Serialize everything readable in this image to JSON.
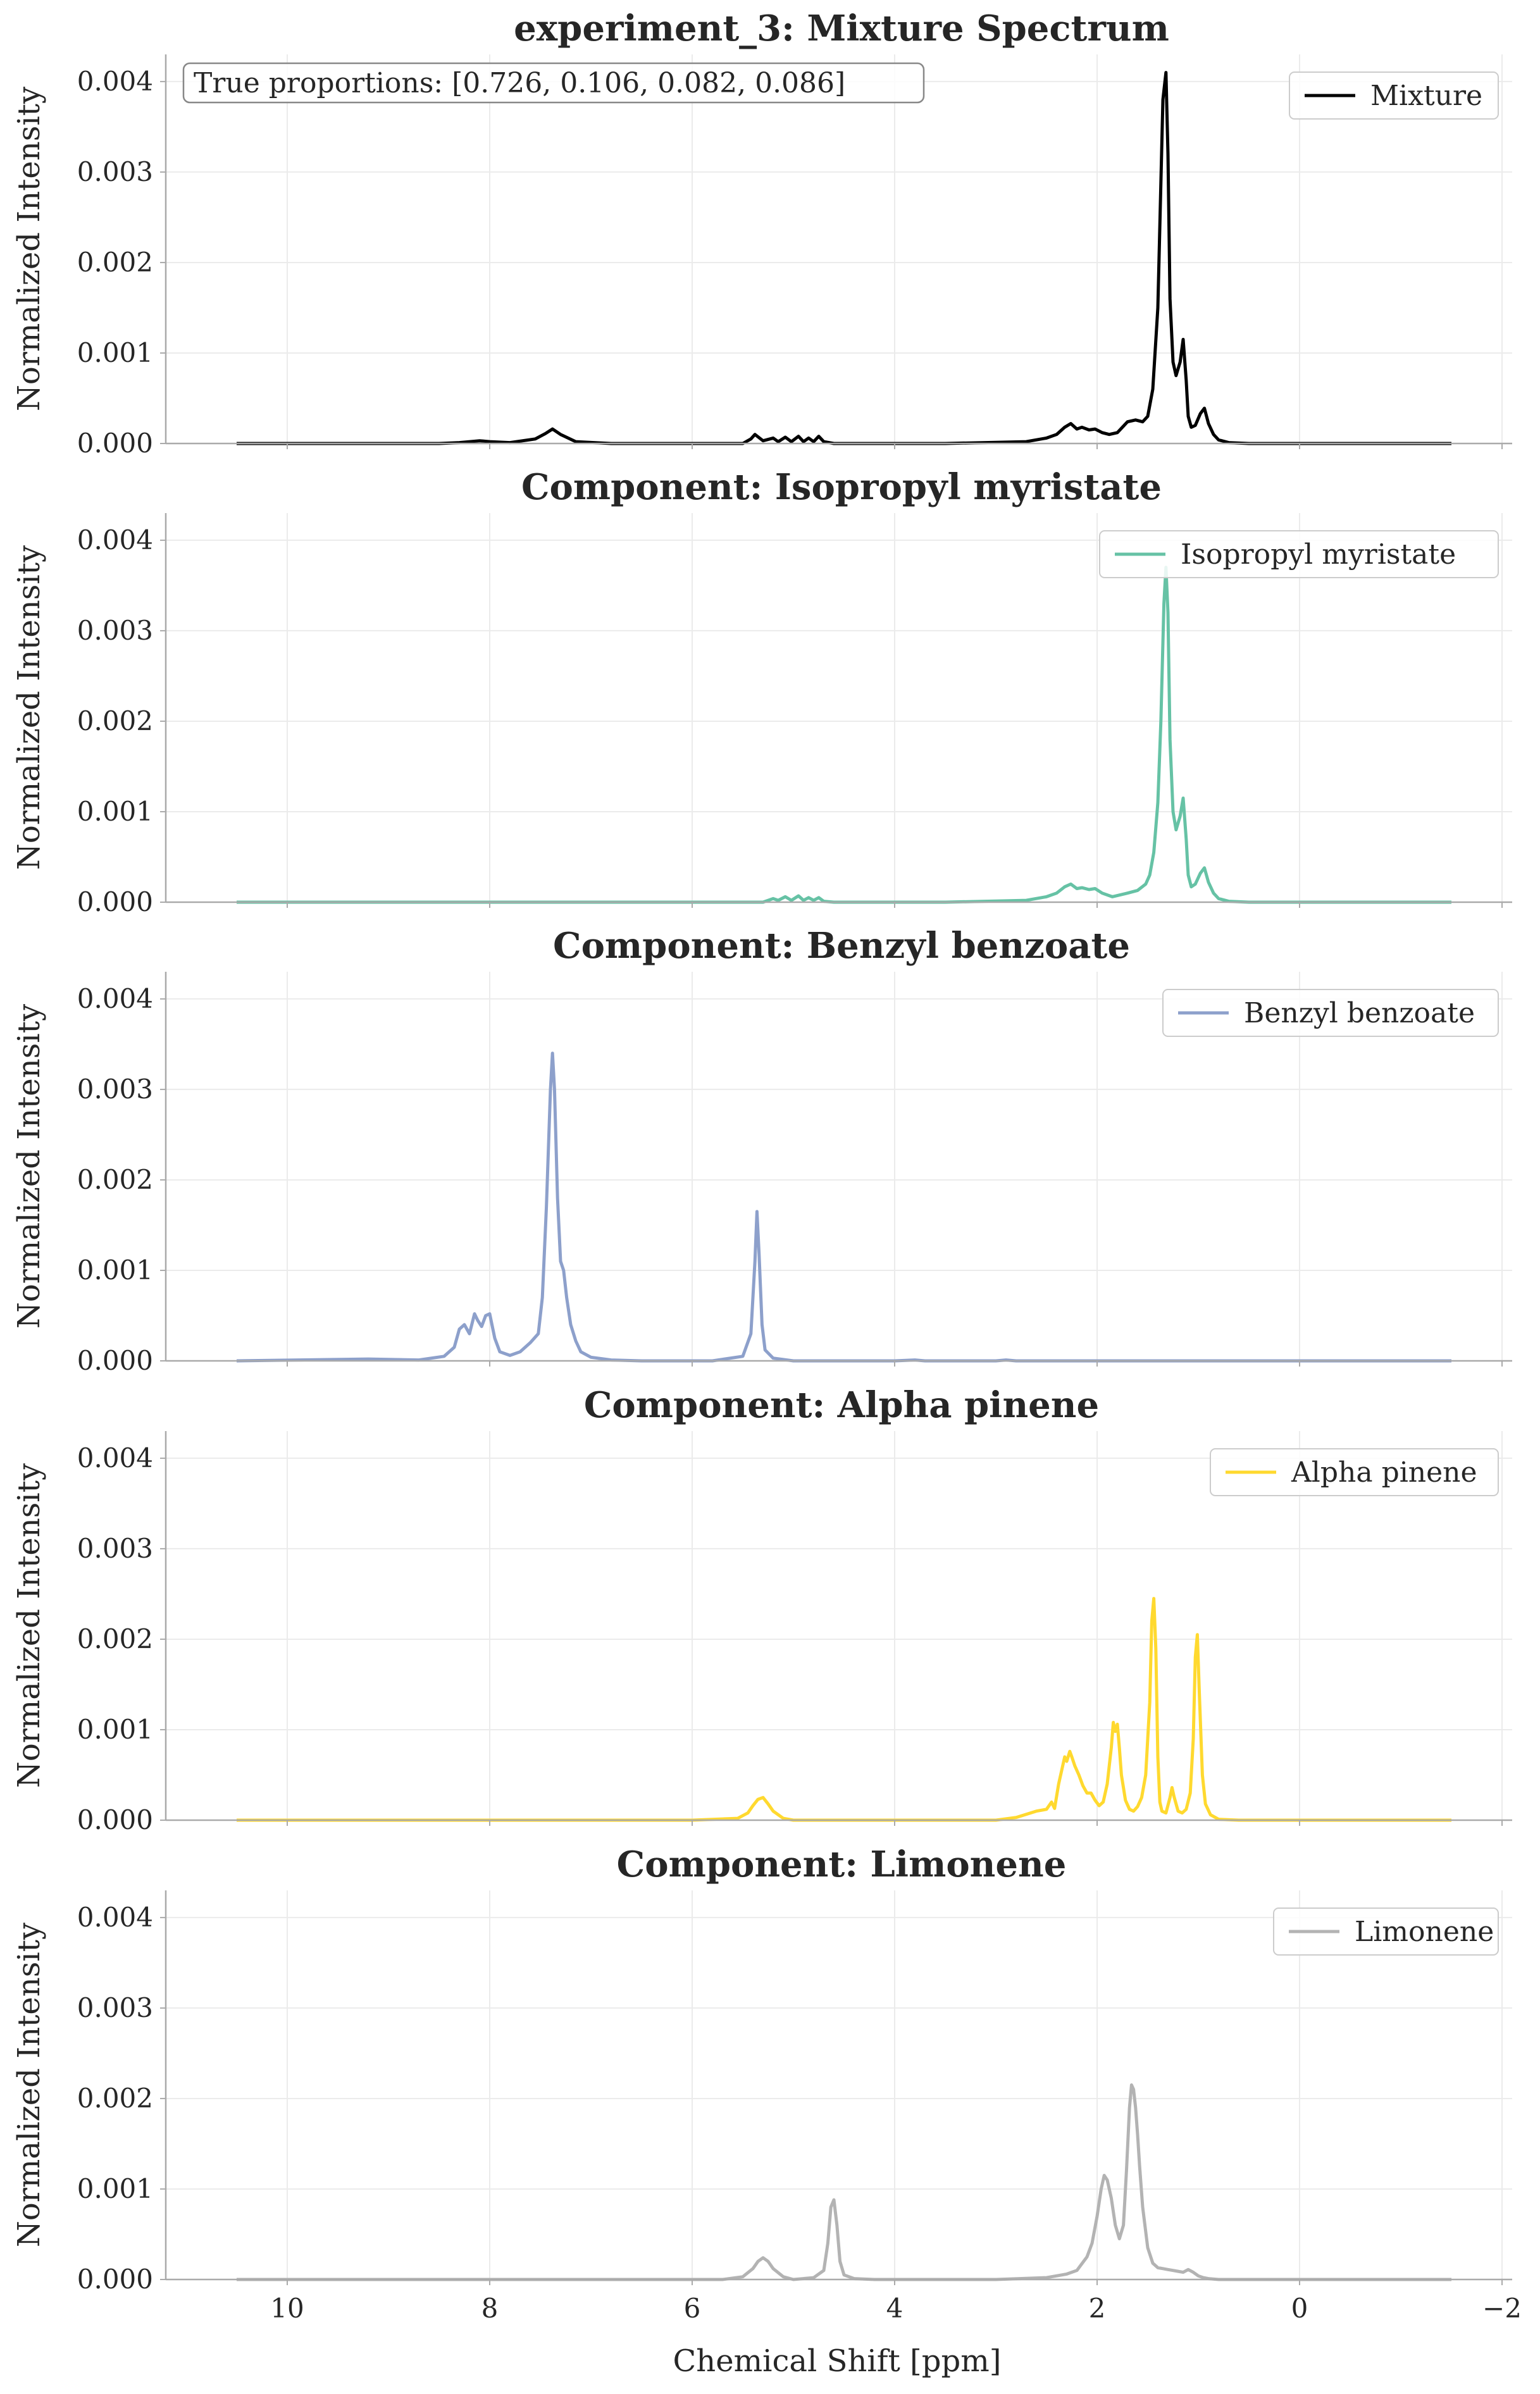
{
  "chart_data": {
    "type": "line",
    "xlabel": "Chemical Shift [ppm]",
    "xlim": [
      11.2,
      -2.1
    ],
    "ylim": [
      0,
      0.0043
    ],
    "x_ticks": [
      10,
      8,
      6,
      4,
      2,
      0,
      -2
    ],
    "x_tick_labels": [
      "10",
      "8",
      "6",
      "4",
      "2",
      "0",
      "−2"
    ],
    "y_ticks": [
      0,
      0.001,
      0.002,
      0.003,
      0.004
    ],
    "y_tick_labels": [
      "0.000",
      "0.001",
      "0.002",
      "0.003",
      "0.004"
    ],
    "grid": true,
    "legend_position": "top-right",
    "annotation": "True proportions: [0.726, 0.106, 0.082, 0.086]",
    "panels": [
      {
        "title": "experiment_3: Mixture Spectrum",
        "ylabel": "Normalized Intensity",
        "series": [
          {
            "name": "Mixture",
            "color": "#000000",
            "x": [
              10.5,
              8.5,
              8.3,
              8.1,
              8.0,
              7.8,
              7.55,
              7.45,
              7.38,
              7.3,
              7.15,
              6.8,
              5.5,
              5.42,
              5.38,
              5.3,
              5.2,
              5.15,
              5.08,
              5.02,
              4.95,
              4.9,
              4.85,
              4.8,
              4.75,
              4.7,
              4.6,
              3.5,
              2.7,
              2.5,
              2.4,
              2.32,
              2.26,
              2.2,
              2.15,
              2.08,
              2.02,
              1.95,
              1.88,
              1.8,
              1.7,
              1.62,
              1.55,
              1.5,
              1.45,
              1.4,
              1.35,
              1.32,
              1.3,
              1.28,
              1.25,
              1.22,
              1.18,
              1.15,
              1.12,
              1.1,
              1.07,
              1.03,
              0.98,
              0.94,
              0.9,
              0.85,
              0.8,
              0.7,
              0.5,
              -1.5
            ],
            "y": [
              0.0,
              0.0,
              1e-05,
              3e-05,
              2e-05,
              1e-05,
              5e-05,
              0.00011,
              0.00016,
              0.0001,
              2e-05,
              0.0,
              0.0,
              5e-05,
              0.0001,
              3e-05,
              6e-05,
              2e-05,
              7e-05,
              2e-05,
              8e-05,
              2e-05,
              6e-05,
              2e-05,
              8e-05,
              2e-05,
              0.0,
              0.0,
              2e-05,
              6e-05,
              0.0001,
              0.00018,
              0.00022,
              0.00016,
              0.00018,
              0.00015,
              0.00016,
              0.00012,
              0.0001,
              0.00012,
              0.00024,
              0.00026,
              0.00024,
              0.0003,
              0.0006,
              0.0015,
              0.0038,
              0.0041,
              0.0032,
              0.0016,
              0.0009,
              0.00075,
              0.0009,
              0.00115,
              0.0007,
              0.0003,
              0.00018,
              0.0002,
              0.00033,
              0.00039,
              0.00022,
              0.0001,
              4e-05,
              1e-05,
              0.0,
              0.0
            ]
          }
        ]
      },
      {
        "title": "Component: Isopropyl myristate",
        "ylabel": "Normalized Intensity",
        "series": [
          {
            "name": "Isopropyl myristate",
            "color": "#66c2a5",
            "x": [
              10.5,
              5.5,
              5.3,
              5.2,
              5.15,
              5.08,
              5.02,
              4.95,
              4.9,
              4.85,
              4.8,
              4.75,
              4.7,
              4.6,
              3.5,
              2.7,
              2.5,
              2.4,
              2.32,
              2.26,
              2.2,
              2.15,
              2.08,
              2.02,
              1.95,
              1.85,
              1.7,
              1.6,
              1.52,
              1.48,
              1.44,
              1.4,
              1.37,
              1.34,
              1.32,
              1.3,
              1.28,
              1.25,
              1.22,
              1.18,
              1.15,
              1.12,
              1.1,
              1.07,
              1.03,
              0.98,
              0.94,
              0.9,
              0.85,
              0.8,
              0.7,
              0.5,
              -1.5
            ],
            "y": [
              0.0,
              0.0,
              0.0,
              4e-05,
              2e-05,
              6e-05,
              2e-05,
              7e-05,
              2e-05,
              5e-05,
              2e-05,
              5e-05,
              1e-05,
              0.0,
              0.0,
              2e-05,
              6e-05,
              0.0001,
              0.00017,
              0.0002,
              0.00015,
              0.00016,
              0.00014,
              0.00015,
              0.0001,
              6e-05,
              0.0001,
              0.00013,
              0.0002,
              0.0003,
              0.00055,
              0.0011,
              0.002,
              0.0033,
              0.0037,
              0.0032,
              0.0018,
              0.001,
              0.0008,
              0.00095,
              0.00115,
              0.0007,
              0.0003,
              0.00017,
              0.0002,
              0.00032,
              0.00038,
              0.00022,
              0.0001,
              4e-05,
              1e-05,
              0.0,
              0.0
            ]
          }
        ]
      },
      {
        "title": "Component: Benzyl benzoate",
        "ylabel": "Normalized Intensity",
        "series": [
          {
            "name": "Benzyl benzoate",
            "color": "#8da0cb",
            "x": [
              10.5,
              9.2,
              8.7,
              8.45,
              8.35,
              8.3,
              8.25,
              8.2,
              8.15,
              8.12,
              8.08,
              8.04,
              8.0,
              7.95,
              7.9,
              7.8,
              7.7,
              7.6,
              7.52,
              7.48,
              7.44,
              7.4,
              7.38,
              7.36,
              7.33,
              7.3,
              7.27,
              7.24,
              7.2,
              7.15,
              7.1,
              7.0,
              6.8,
              6.5,
              5.8,
              5.5,
              5.42,
              5.38,
              5.36,
              5.34,
              5.31,
              5.28,
              5.2,
              5.0,
              4.0,
              3.8,
              3.7,
              3.0,
              2.9,
              2.8,
              -1.5
            ],
            "y": [
              0.0,
              2e-05,
              1e-05,
              5e-05,
              0.00015,
              0.00035,
              0.0004,
              0.0003,
              0.00052,
              0.00045,
              0.00038,
              0.0005,
              0.00052,
              0.00025,
              0.0001,
              6e-05,
              0.0001,
              0.0002,
              0.0003,
              0.0007,
              0.0017,
              0.003,
              0.0034,
              0.003,
              0.0018,
              0.0011,
              0.001,
              0.0007,
              0.0004,
              0.00022,
              0.0001,
              4e-05,
              1e-05,
              0.0,
              0.0,
              5e-05,
              0.0003,
              0.0011,
              0.00165,
              0.0012,
              0.0004,
              0.00012,
              3e-05,
              0.0,
              0.0,
              1e-05,
              0.0,
              0.0,
              1e-05,
              0.0,
              0.0
            ]
          }
        ]
      },
      {
        "title": "Component: Alpha pinene",
        "ylabel": "Normalized Intensity",
        "series": [
          {
            "name": "Alpha pinene",
            "color": "#ffd92f",
            "x": [
              10.5,
              6.0,
              5.55,
              5.45,
              5.4,
              5.35,
              5.3,
              5.25,
              5.2,
              5.1,
              5.0,
              3.0,
              2.8,
              2.6,
              2.5,
              2.45,
              2.42,
              2.38,
              2.34,
              2.32,
              2.3,
              2.27,
              2.25,
              2.22,
              2.18,
              2.14,
              2.1,
              2.06,
              2.02,
              1.98,
              1.94,
              1.9,
              1.86,
              1.84,
              1.82,
              1.8,
              1.78,
              1.76,
              1.72,
              1.68,
              1.64,
              1.6,
              1.56,
              1.52,
              1.48,
              1.46,
              1.44,
              1.42,
              1.4,
              1.38,
              1.36,
              1.32,
              1.28,
              1.26,
              1.24,
              1.2,
              1.16,
              1.12,
              1.08,
              1.05,
              1.03,
              1.01,
              0.99,
              0.96,
              0.93,
              0.88,
              0.8,
              0.6,
              0.0,
              -1.5
            ],
            "y": [
              0.0,
              0.0,
              2e-05,
              8e-05,
              0.00016,
              0.00023,
              0.00025,
              0.00018,
              0.0001,
              2e-05,
              0.0,
              0.0,
              3e-05,
              0.0001,
              0.00012,
              0.0002,
              0.00013,
              0.0004,
              0.0006,
              0.0007,
              0.00065,
              0.00076,
              0.0007,
              0.0006,
              0.0005,
              0.00038,
              0.0003,
              0.0003,
              0.00022,
              0.00016,
              0.0002,
              0.0004,
              0.0008,
              0.00108,
              0.00098,
              0.00106,
              0.0008,
              0.0005,
              0.00022,
              0.00012,
              0.0001,
              0.00015,
              0.00025,
              0.0005,
              0.0013,
              0.0022,
              0.00245,
              0.0019,
              0.0007,
              0.0002,
              0.0001,
              8e-05,
              0.00025,
              0.00036,
              0.00026,
              0.0001,
              8e-05,
              0.00012,
              0.0003,
              0.0009,
              0.0018,
              0.00205,
              0.0014,
              0.0005,
              0.00018,
              6e-05,
              1e-05,
              0.0,
              0.0,
              0.0
            ]
          }
        ]
      },
      {
        "title": "Component: Limonene",
        "ylabel": "Normalized Intensity",
        "series": [
          {
            "name": "Limonene",
            "color": "#b3b3b3",
            "x": [
              10.5,
              5.7,
              5.5,
              5.4,
              5.35,
              5.3,
              5.25,
              5.2,
              5.1,
              5.0,
              4.8,
              4.7,
              4.66,
              4.63,
              4.6,
              4.57,
              4.54,
              4.5,
              4.4,
              4.2,
              3.0,
              2.5,
              2.3,
              2.2,
              2.1,
              2.05,
              2.0,
              1.96,
              1.93,
              1.9,
              1.86,
              1.82,
              1.78,
              1.74,
              1.71,
              1.68,
              1.66,
              1.64,
              1.62,
              1.6,
              1.58,
              1.55,
              1.5,
              1.45,
              1.4,
              1.35,
              1.3,
              1.25,
              1.2,
              1.15,
              1.1,
              1.05,
              1.0,
              0.95,
              0.9,
              0.8,
              -1.5
            ],
            "y": [
              0.0,
              0.0,
              3e-05,
              0.00012,
              0.0002,
              0.00024,
              0.0002,
              0.00012,
              3e-05,
              0.0,
              2e-05,
              0.0001,
              0.0004,
              0.0008,
              0.00088,
              0.0006,
              0.0002,
              5e-05,
              1e-05,
              0.0,
              0.0,
              2e-05,
              6e-05,
              0.0001,
              0.00025,
              0.0004,
              0.0007,
              0.001,
              0.00115,
              0.0011,
              0.0009,
              0.0006,
              0.00045,
              0.0006,
              0.0012,
              0.0019,
              0.00215,
              0.0021,
              0.0019,
              0.0016,
              0.00125,
              0.0008,
              0.00035,
              0.00018,
              0.00013,
              0.00012,
              0.00011,
              0.0001,
              9e-05,
              8e-05,
              0.00011,
              8e-05,
              4e-05,
              2e-05,
              1e-05,
              0.0,
              0.0
            ]
          }
        ]
      }
    ]
  }
}
